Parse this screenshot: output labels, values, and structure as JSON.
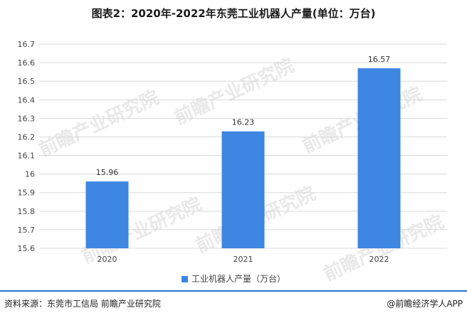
{
  "title": "图表2：2020年-2022年东莞工业机器人产量(单位：万台)",
  "footer": {
    "source": "资料来源：东莞市工信局 前瞻产业研究院",
    "credit": "@前瞻经济学人APP"
  },
  "watermark_text": "前瞻产业研究院",
  "colors": {
    "bar": "#3d87e2",
    "grid": "#d9d9d9",
    "footer_rule": "#2e6fd6"
  },
  "chart_data": {
    "type": "bar",
    "categories": [
      "2020",
      "2021",
      "2022"
    ],
    "series": [
      {
        "name": "工业机器人产量（万台）",
        "values": [
          15.96,
          16.23,
          16.57
        ]
      }
    ],
    "data_labels": [
      "15.96",
      "16.23",
      "16.57"
    ],
    "ylim": [
      15.6,
      16.7
    ],
    "yticks": [
      15.6,
      15.7,
      15.8,
      15.9,
      16,
      16.1,
      16.2,
      16.3,
      16.4,
      16.5,
      16.6,
      16.7
    ],
    "ytick_labels": [
      "15.6",
      "15.7",
      "15.8",
      "15.9",
      "16",
      "16.1",
      "16.2",
      "16.3",
      "16.4",
      "16.5",
      "16.6",
      "16.7"
    ],
    "grid": true,
    "legend_position": "bottom"
  }
}
